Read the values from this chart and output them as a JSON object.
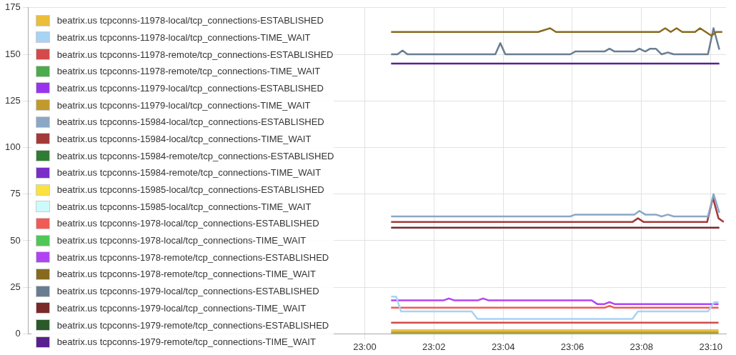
{
  "chart_data": {
    "type": "line",
    "xlim": [
      22.838,
      23.174
    ],
    "ylim": [
      0,
      175
    ],
    "xticks": [
      {
        "value": 23,
        "label": "23:00"
      },
      {
        "value": 23.0333,
        "label": "23:02"
      },
      {
        "value": 23.0667,
        "label": "23:04"
      },
      {
        "value": 23.1,
        "label": "23:06"
      },
      {
        "value": 23.1333,
        "label": "23:08"
      },
      {
        "value": 23.1667,
        "label": "23:10"
      }
    ],
    "yticks": [
      0,
      25,
      50,
      75,
      100,
      125,
      150,
      175
    ],
    "grid": true,
    "legend": "left",
    "marker": "none",
    "series": [
      {
        "name": "beatrix.us tcpconns-11978-local/tcp_connections-ESTABLISHED",
        "color": "#eabd3b",
        "x": [
          23.0127,
          23.1704
        ],
        "values": [
          2,
          2
        ]
      },
      {
        "name": "beatrix.us tcpconns-11978-local/tcp_connections-TIME_WAIT",
        "color": "#a7d3f5",
        "x": [
          23.0127,
          23.0151,
          23.0175,
          23.0515,
          23.0543,
          23.1289,
          23.1316,
          23.1653,
          23.1684,
          23.1704
        ],
        "values": [
          20,
          20,
          12,
          12,
          8,
          8,
          12,
          12,
          17,
          17
        ]
      },
      {
        "name": "beatrix.us tcpconns-11978-remote/tcp_connections-ESTABLISHED",
        "color": "#d44a4a",
        "x": [
          23.0127,
          23.1704
        ],
        "values": [
          6,
          6
        ]
      },
      {
        "name": "beatrix.us tcpconns-11978-remote/tcp_connections-TIME_WAIT",
        "color": "#4cab4c",
        "x": [
          23.0127,
          23.1704
        ],
        "values": [
          0,
          0
        ]
      },
      {
        "name": "beatrix.us tcpconns-11979-local/tcp_connections-ESTABLISHED",
        "color": "#9933ee"
      },
      {
        "name": "beatrix.us tcpconns-11979-local/tcp_connections-TIME_WAIT",
        "color": "#c19a2c",
        "x": [
          23.0127,
          23.1704
        ],
        "values": [
          1,
          1
        ]
      },
      {
        "name": "beatrix.us tcpconns-15984-local/tcp_connections-ESTABLISHED",
        "color": "#8aa8c6",
        "x": [
          23.0127,
          23.099,
          23.1014,
          23.1299,
          23.1323,
          23.1351,
          23.1402,
          23.143,
          23.146,
          23.1488,
          23.1653,
          23.168,
          23.1708
        ],
        "values": [
          63,
          63,
          64,
          64,
          66,
          64,
          64,
          63,
          64,
          63,
          63,
          75,
          65
        ]
      },
      {
        "name": "beatrix.us tcpconns-15984-local/tcp_connections-TIME_WAIT",
        "color": "#a33a3a",
        "x": [
          23.0127,
          23.1289,
          23.1316,
          23.1344,
          23.1649,
          23.1677,
          23.1704,
          23.1729
        ],
        "values": [
          60,
          60,
          62,
          60,
          60,
          73,
          62,
          60
        ]
      },
      {
        "name": "beatrix.us tcpconns-15984-remote/tcp_connections-ESTABLISHED",
        "color": "#2f7d32"
      },
      {
        "name": "beatrix.us tcpconns-15984-remote/tcp_connections-TIME_WAIT",
        "color": "#7a2ec8"
      },
      {
        "name": "beatrix.us tcpconns-15985-local/tcp_connections-ESTABLISHED",
        "color": "#fbe23f"
      },
      {
        "name": "beatrix.us tcpconns-15985-local/tcp_connections-TIME_WAIT",
        "color": "#cdfbfd"
      },
      {
        "name": "beatrix.us tcpconns-1978-local/tcp_connections-ESTABLISHED",
        "color": "#f25a55",
        "x": [
          23.0127,
          23.1155,
          23.1179,
          23.1203,
          23.1704
        ],
        "values": [
          14,
          14,
          15,
          14,
          14
        ]
      },
      {
        "name": "beatrix.us tcpconns-1978-local/tcp_connections-TIME_WAIT",
        "color": "#50c756"
      },
      {
        "name": "beatrix.us tcpconns-1978-remote/tcp_connections-ESTABLISHED",
        "color": "#b044f5",
        "x": [
          23.0127,
          23.0381,
          23.0405,
          23.043,
          23.0546,
          23.057,
          23.0595,
          23.1093,
          23.112,
          23.1155,
          23.1179,
          23.1203,
          23.1704
        ],
        "values": [
          18,
          18,
          19,
          18,
          18,
          19,
          18,
          18,
          16,
          16,
          17,
          16,
          16
        ]
      },
      {
        "name": "beatrix.us tcpconns-1978-remote/tcp_connections-TIME_WAIT",
        "color": "#876a1e",
        "x": [
          23.0127,
          23.0835,
          23.0893,
          23.0921,
          23.1419,
          23.1447,
          23.1474,
          23.1502,
          23.1529,
          23.1591,
          23.1615,
          23.167,
          23.1694,
          23.1722
        ],
        "values": [
          162,
          162,
          164,
          162,
          162,
          164,
          162,
          164,
          162,
          162,
          164,
          160,
          162,
          162
        ]
      },
      {
        "name": "beatrix.us tcpconns-1979-local/tcp_connections-ESTABLISHED",
        "color": "#687d92",
        "x": [
          23.0127,
          23.0158,
          23.0182,
          23.0206,
          23.0629,
          23.0653,
          23.0677,
          23.099,
          23.1014,
          23.1155,
          23.1179,
          23.1203,
          23.1299,
          23.1323,
          23.1351,
          23.1375,
          23.1402,
          23.143,
          23.146,
          23.1488,
          23.1653,
          23.168,
          23.1708
        ],
        "values": [
          150,
          150,
          152,
          150,
          150,
          156,
          150,
          150,
          151.5,
          151.5,
          153,
          151.5,
          151.5,
          153,
          151.5,
          153,
          153,
          150,
          151,
          150,
          150,
          164,
          152.5
        ]
      },
      {
        "name": "beatrix.us tcpconns-1979-local/tcp_connections-TIME_WAIT",
        "color": "#7a2828",
        "x": [
          23.0127,
          23.1708
        ],
        "values": [
          57,
          57
        ]
      },
      {
        "name": "beatrix.us tcpconns-1979-remote/tcp_connections-ESTABLISHED",
        "color": "#2a5a28"
      },
      {
        "name": "beatrix.us tcpconns-1979-remote/tcp_connections-TIME_WAIT",
        "color": "#5a1f8f",
        "x": [
          23.0127,
          23.1708
        ],
        "values": [
          145,
          145
        ]
      }
    ]
  }
}
